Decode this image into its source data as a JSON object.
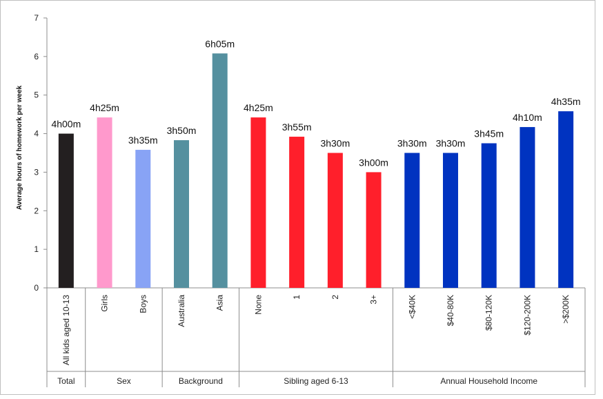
{
  "chart_data": {
    "type": "bar",
    "title": "",
    "ylabel": "Average hours of homework per week",
    "xlabel": "",
    "ylim": [
      0,
      7
    ],
    "yticks": [
      0,
      1,
      2,
      3,
      4,
      5,
      6,
      7
    ],
    "grid": false,
    "legend": "none",
    "categories": [
      "All kids aged 10-13",
      "Girls",
      "Boys",
      "Australia",
      "Asia",
      "None",
      "1",
      "2",
      "3+",
      "<$40K",
      "$40-80K",
      "$80-120K",
      "$120-200K",
      ">$200K"
    ],
    "values": [
      4.0,
      4.42,
      3.58,
      3.83,
      6.08,
      4.42,
      3.92,
      3.5,
      3.0,
      3.5,
      3.5,
      3.75,
      4.17,
      4.58
    ],
    "data_labels": [
      "4h00m",
      "4h25m",
      "3h35m",
      "3h50m",
      "6h05m",
      "4h25m",
      "3h55m",
      "3h30m",
      "3h00m",
      "3h30m",
      "3h30m",
      "3h45m",
      "4h10m",
      "4h35m"
    ],
    "bar_colors": [
      "#231f20",
      "#ff99cc",
      "#88a3f5",
      "#55909f",
      "#55909f",
      "#ff1f2b",
      "#ff1f2b",
      "#ff1f2b",
      "#ff1f2b",
      "#0033c0",
      "#0033c0",
      "#0033c0",
      "#0033c0",
      "#0033c0"
    ],
    "groups": [
      {
        "label": "Total",
        "start": 0,
        "end": 0
      },
      {
        "label": "Sex",
        "start": 1,
        "end": 2
      },
      {
        "label": "Background",
        "start": 3,
        "end": 4
      },
      {
        "label": "Sibling aged 6-13",
        "start": 5,
        "end": 8
      },
      {
        "label": "Annual Household Income",
        "start": 9,
        "end": 13
      }
    ]
  }
}
